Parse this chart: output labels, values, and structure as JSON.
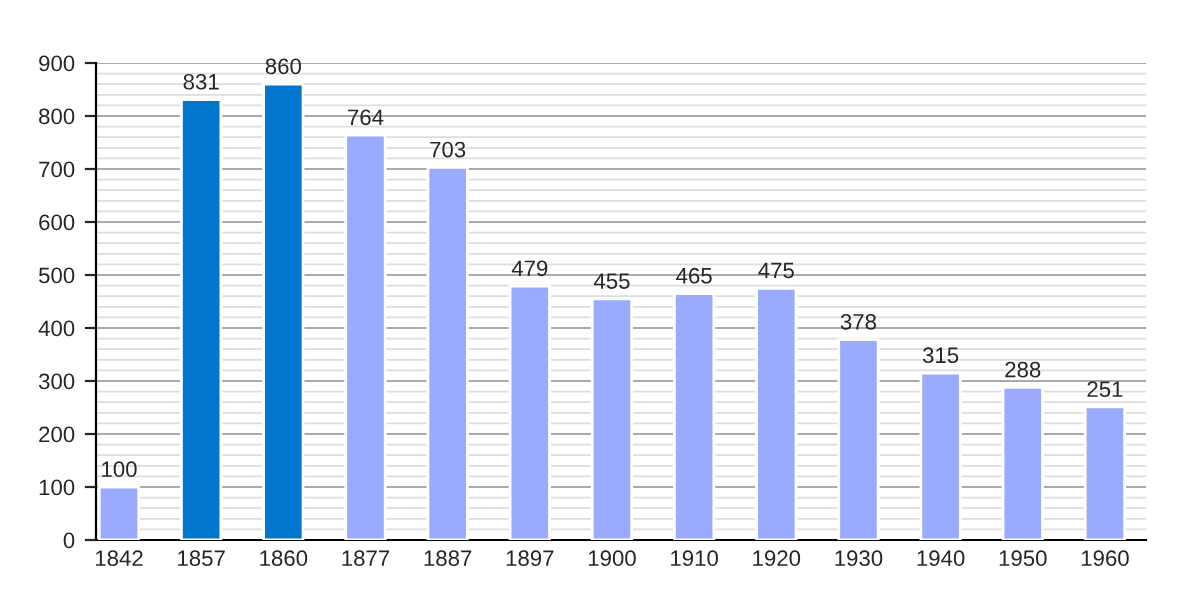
{
  "chart_data": {
    "type": "bar",
    "categories": [
      "1842",
      "1857",
      "1860",
      "1877",
      "1887",
      "1897",
      "1900",
      "1910",
      "1920",
      "1930",
      "1940",
      "1950",
      "1960"
    ],
    "values": [
      100,
      831,
      860,
      764,
      703,
      479,
      455,
      465,
      475,
      378,
      315,
      288,
      251
    ],
    "colors": [
      "#99aaff",
      "#0077cc",
      "#0077cc",
      "#99aaff",
      "#99aaff",
      "#99aaff",
      "#99aaff",
      "#99aaff",
      "#99aaff",
      "#99aaff",
      "#99aaff",
      "#99aaff",
      "#99aaff"
    ],
    "ylim": [
      0,
      900
    ],
    "yticks": [
      0,
      100,
      200,
      300,
      400,
      500,
      600,
      700,
      800,
      900
    ],
    "grid": "y",
    "data_labels": true
  }
}
